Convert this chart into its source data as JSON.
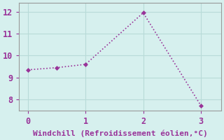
{
  "x": [
    0,
    0.5,
    1.0,
    2.0,
    3.0
  ],
  "y": [
    9.35,
    9.45,
    9.6,
    11.95,
    7.72
  ],
  "line_color": "#993399",
  "marker": "D",
  "marker_size": 3,
  "background_color": "#d6f0ee",
  "grid_color": "#b8dbd8",
  "xlabel": "Windchill (Refroidissement éolien,°C)",
  "xlabel_color": "#993399",
  "tick_color": "#993399",
  "spine_color": "#999999",
  "xlim": [
    -0.15,
    3.35
  ],
  "ylim": [
    7.5,
    12.4
  ],
  "xticks": [
    0,
    1,
    2,
    3
  ],
  "yticks": [
    8,
    9,
    10,
    11,
    12
  ],
  "label_fontsize": 8,
  "tick_fontsize": 8.5,
  "linestyle": "dotted",
  "linewidth": 1.2
}
